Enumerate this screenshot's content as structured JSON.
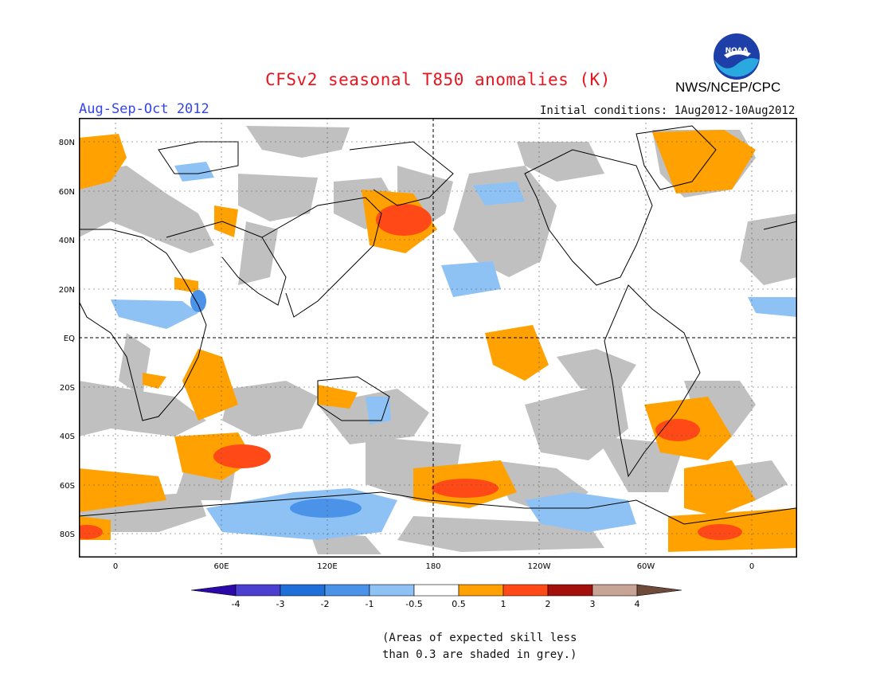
{
  "title": "CFSv2 seasonal T850 anomalies (K)",
  "agency": "NWS/NCEP/CPC",
  "logo_text": "NOAA",
  "season": "Aug-Sep-Oct 2012",
  "initial_conditions": "Initial conditions: 1Aug2012-10Aug2012",
  "lat_labels": [
    "80N",
    "60N",
    "40N",
    "20N",
    "EQ",
    "20S",
    "40S",
    "60S",
    "80S"
  ],
  "lon_labels": [
    "0",
    "60E",
    "120E",
    "180",
    "120W",
    "60W",
    "0"
  ],
  "colorbar": {
    "labels": [
      "-4",
      "-3",
      "-2",
      "-1",
      "-0.5",
      "0.5",
      "1",
      "2",
      "3",
      "4"
    ],
    "colors": [
      "#2a09a8",
      "#4b3fcf",
      "#1f6fd8",
      "#4a93e8",
      "#8ec2f5",
      "#ffffff",
      "#ffa100",
      "#ff4a17",
      "#a3100c",
      "#c8a497",
      "#6e4a3a"
    ]
  },
  "skill_note_line1": "(Areas of expected skill less",
  "skill_note_line2": "than 0.3 are shaded in grey.)",
  "colors": {
    "grey_skill": "#c0c0c0",
    "pos_05": "#ffa100",
    "pos_1": "#ff4a17",
    "neg_05": "#8ec2f5",
    "neg_1": "#4a93e8"
  }
}
